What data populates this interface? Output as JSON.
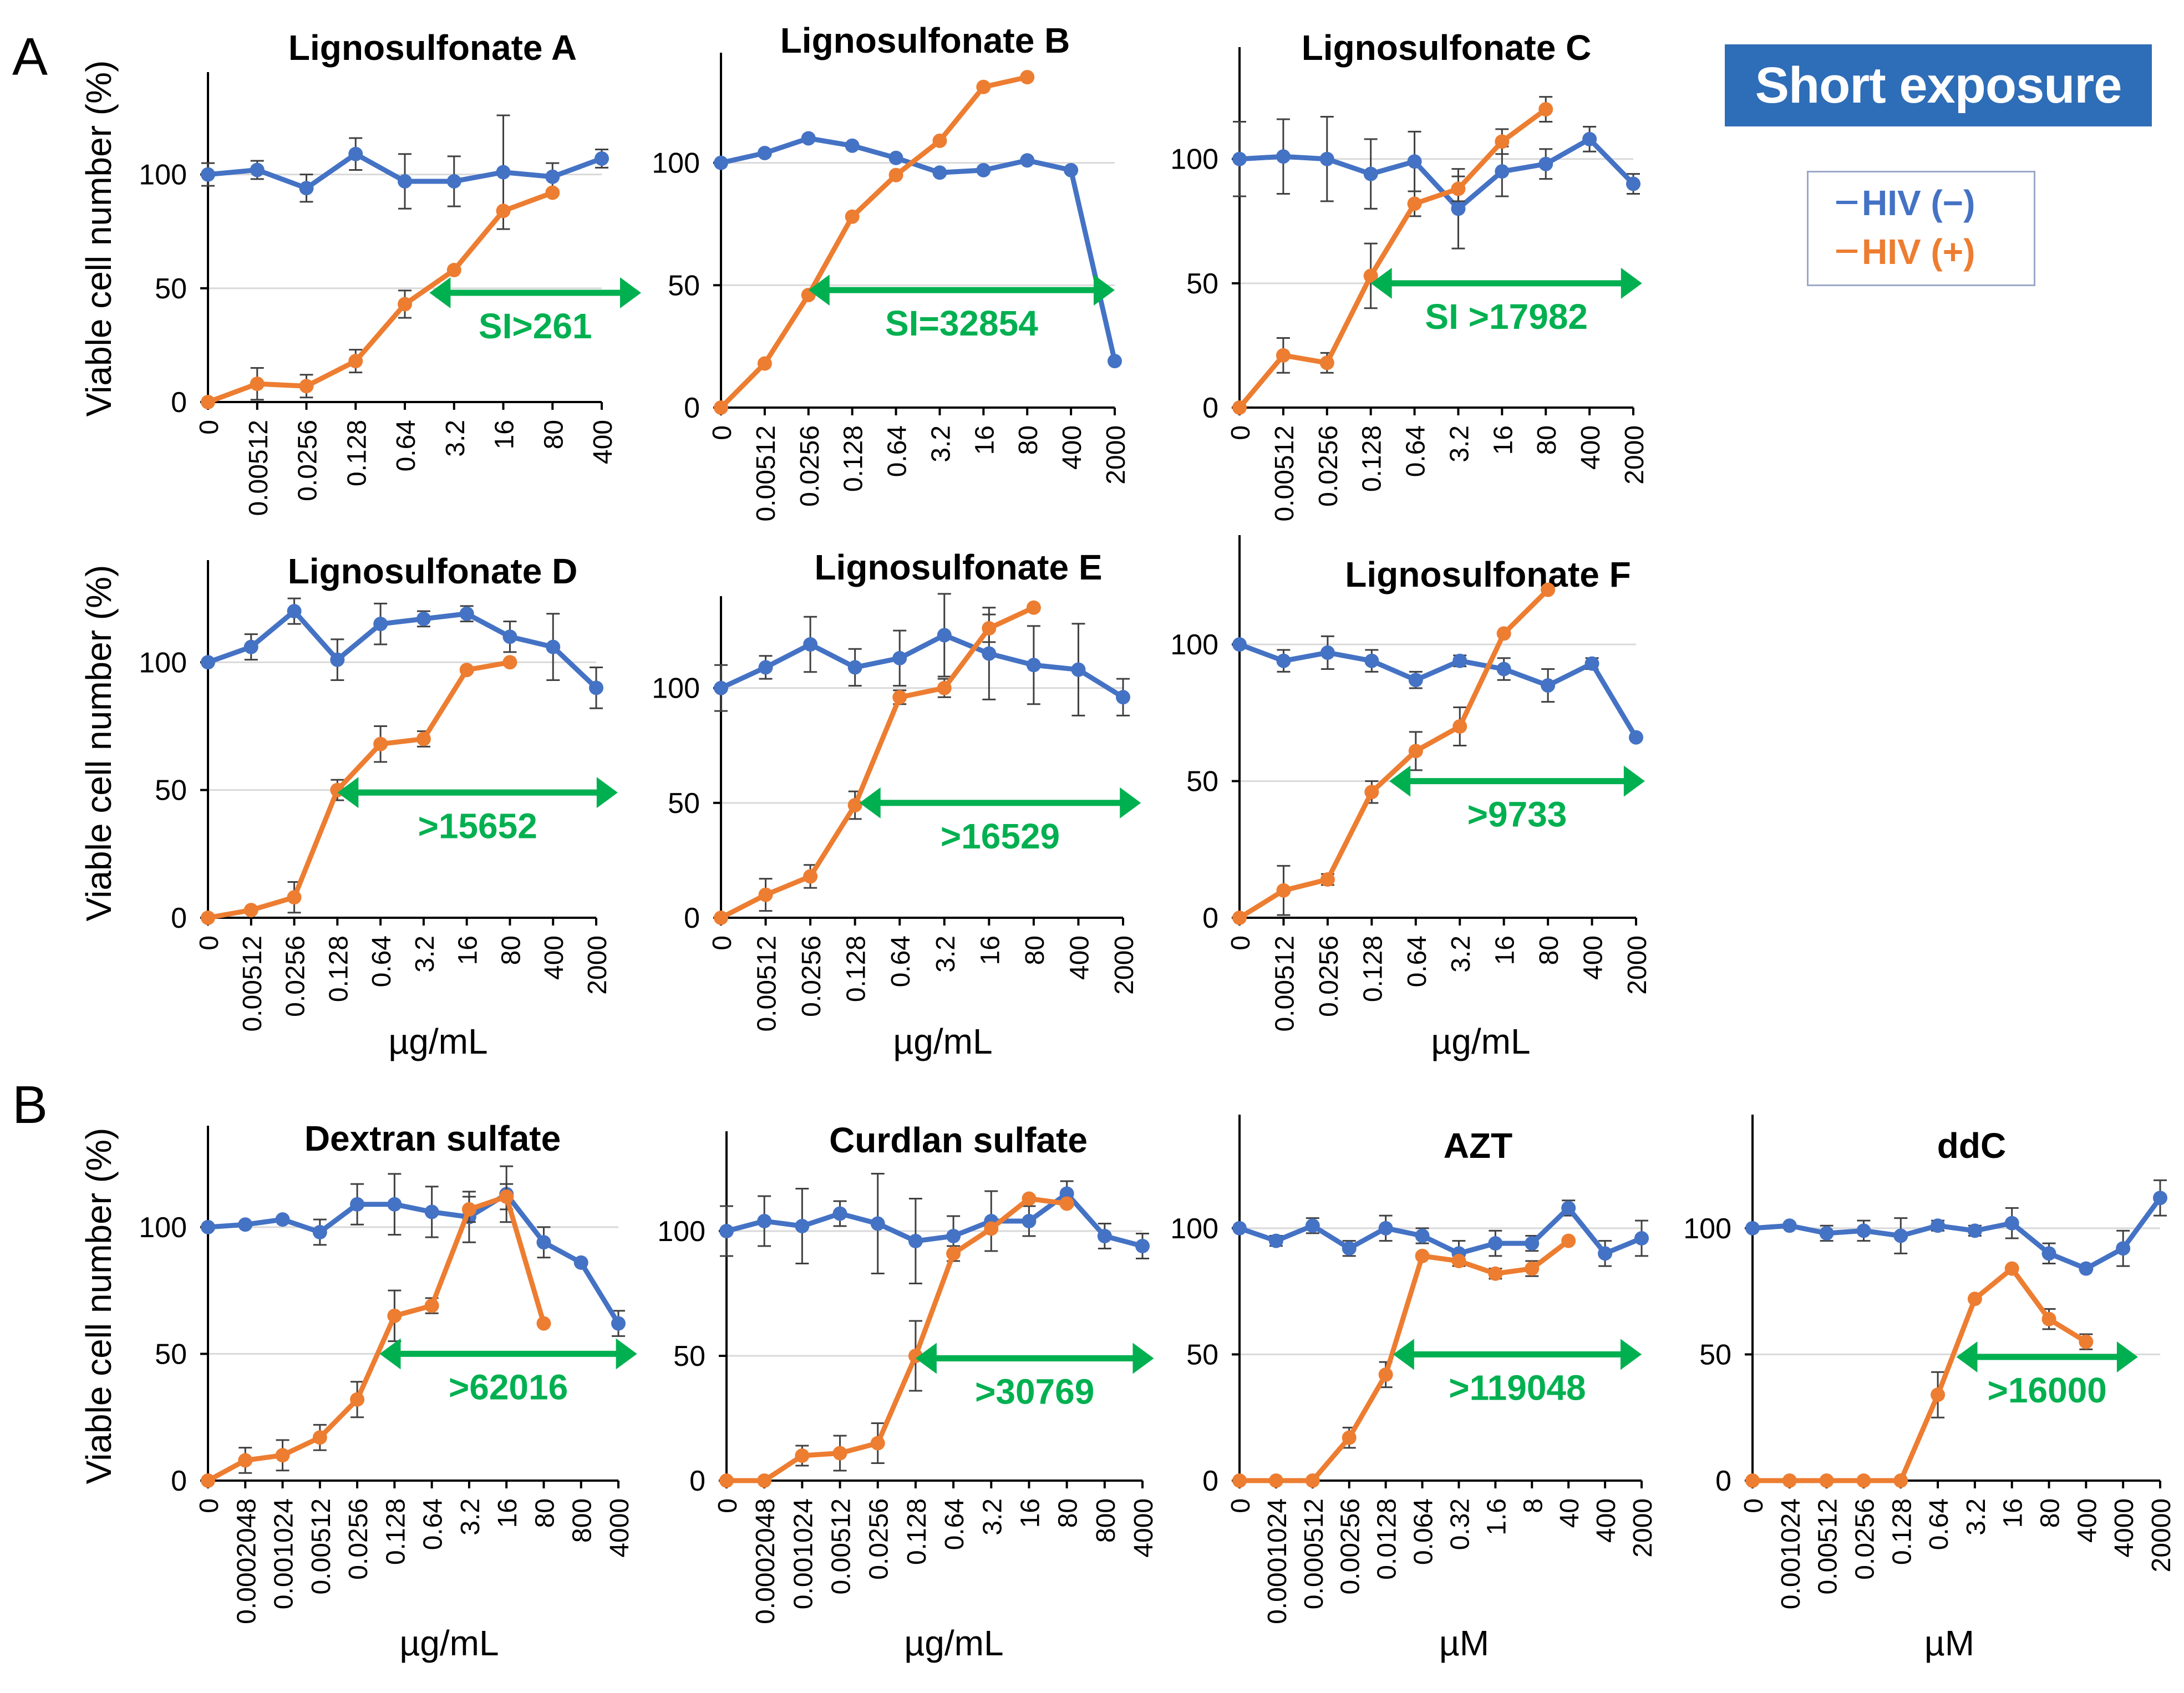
{
  "panel_letters": [
    "A",
    "B"
  ],
  "badge": "Short exposure",
  "legend": [
    {
      "label": "HIV (−)",
      "color": "#4472c4"
    },
    {
      "label": "HIV (+)",
      "color": "#ed7d31"
    }
  ],
  "colors": {
    "hiv_neg": "#4472c4",
    "hiv_pos": "#ed7d31",
    "si_arrow": "#00b050"
  },
  "chart_data": [
    {
      "type": "line",
      "title": "Lignosulfonate A",
      "ylabel": "Viable cell number (%)",
      "xlabel": "",
      "categories": [
        "0",
        "0.00512",
        "0.0256",
        "0.128",
        "0.64",
        "3.2",
        "16",
        "80",
        "400"
      ],
      "ylim": [
        0,
        145
      ],
      "yticks": [
        0,
        50,
        100
      ],
      "series": [
        {
          "name": "HIV (−)",
          "values": [
            100,
            102,
            94,
            109,
            97,
            97,
            101,
            99,
            107
          ],
          "errors": [
            5,
            4,
            6,
            7,
            12,
            11,
            25,
            6,
            4
          ]
        },
        {
          "name": "HIV (+)",
          "values": [
            0,
            8,
            7,
            18,
            43,
            58,
            84,
            92,
            null
          ],
          "errors": [
            0,
            7,
            5,
            5,
            6,
            0,
            0,
            0,
            0
          ]
        }
      ],
      "si_label": "SI>261",
      "si_arrow": {
        "from": 4.5,
        "to": 8.8,
        "y": 48
      }
    },
    {
      "type": "line",
      "title": "Lignosulfonate B",
      "ylabel": "",
      "xlabel": "",
      "categories": [
        "0",
        "0.00512",
        "0.0256",
        "0.128",
        "0.64",
        "3.2",
        "16",
        "80",
        "400",
        "2000"
      ],
      "ylim": [
        0,
        145
      ],
      "yticks": [
        0,
        50,
        100
      ],
      "series": [
        {
          "name": "HIV (−)",
          "values": [
            100,
            104,
            110,
            107,
            102,
            96,
            97,
            101,
            97,
            19
          ],
          "errors": [
            0,
            0,
            0,
            0,
            0,
            0,
            0,
            0,
            0,
            0
          ]
        },
        {
          "name": "HIV (+)",
          "values": [
            0,
            18,
            46,
            78,
            95,
            109,
            131,
            135,
            null,
            null
          ],
          "errors": [
            0,
            0,
            0,
            0,
            0,
            0,
            0,
            0,
            0,
            0
          ]
        }
      ],
      "si_label": "SI=32854",
      "si_arrow": {
        "from": 2.0,
        "to": 9.0,
        "y": 48
      }
    },
    {
      "type": "line",
      "title": "Lignosulfonate C",
      "ylabel": "",
      "xlabel": "",
      "categories": [
        "0",
        "0.00512",
        "0.0256",
        "0.128",
        "0.64",
        "3.2",
        "16",
        "80",
        "400",
        "2000"
      ],
      "ylim": [
        0,
        145
      ],
      "yticks": [
        0,
        50,
        100
      ],
      "series": [
        {
          "name": "HIV (−)",
          "values": [
            100,
            101,
            100,
            94,
            99,
            80,
            95,
            98,
            108,
            90
          ],
          "errors": [
            15,
            15,
            17,
            14,
            12,
            16,
            10,
            6,
            5,
            4
          ]
        },
        {
          "name": "HIV (+)",
          "values": [
            0,
            21,
            18,
            53,
            82,
            88,
            107,
            120,
            null,
            null
          ],
          "errors": [
            0,
            7,
            4,
            13,
            5,
            5,
            5,
            5,
            0,
            0
          ]
        }
      ],
      "si_label": "SI >17982",
      "si_arrow": {
        "from": 3.0,
        "to": 9.2,
        "y": 50
      }
    },
    {
      "type": "line",
      "title": "Lignosulfonate D",
      "ylabel": "Viable cell number (%)",
      "xlabel": "µg/mL",
      "categories": [
        "0",
        "0.00512",
        "0.0256",
        "0.128",
        "0.64",
        "3.2",
        "16",
        "80",
        "400",
        "2000"
      ],
      "ylim": [
        0,
        140
      ],
      "yticks": [
        0,
        50,
        100
      ],
      "series": [
        {
          "name": "HIV (−)",
          "values": [
            100,
            106,
            120,
            101,
            115,
            117,
            119,
            110,
            106,
            90
          ],
          "errors": [
            0,
            5,
            5,
            8,
            8,
            3,
            3,
            6,
            13,
            8
          ]
        },
        {
          "name": "HIV (+)",
          "values": [
            0,
            3,
            8,
            50,
            68,
            70,
            97,
            100,
            null,
            null
          ],
          "errors": [
            0,
            0,
            6,
            4,
            7,
            3,
            0,
            0,
            0,
            0
          ]
        }
      ],
      "si_label": ">15652",
      "si_arrow": {
        "from": 3.0,
        "to": 9.5,
        "y": 49
      }
    },
    {
      "type": "line",
      "title": "Lignosulfonate E",
      "ylabel": "",
      "xlabel": "µg/mL",
      "categories": [
        "0",
        "0.00512",
        "0.0256",
        "0.128",
        "0.64",
        "3.2",
        "16",
        "80",
        "400",
        "2000"
      ],
      "ylim": [
        0,
        140
      ],
      "yticks": [
        0,
        50,
        100
      ],
      "series": [
        {
          "name": "HIV (−)",
          "values": [
            100,
            109,
            119,
            109,
            113,
            123,
            115,
            110,
            108,
            96
          ],
          "errors": [
            10,
            5,
            12,
            8,
            12,
            18,
            20,
            17,
            20,
            8
          ]
        },
        {
          "name": "HIV (+)",
          "values": [
            0,
            10,
            18,
            49,
            96,
            100,
            126,
            135,
            null,
            null
          ],
          "errors": [
            0,
            7,
            5,
            6,
            3,
            4,
            6,
            0,
            0,
            0
          ]
        }
      ],
      "si_label": ">16529",
      "si_arrow": {
        "from": 3.1,
        "to": 9.4,
        "y": 50
      }
    },
    {
      "type": "line",
      "title": "Lignosulfonate F",
      "ylabel": "",
      "xlabel": "µg/mL",
      "categories": [
        "0",
        "0.00512",
        "0.0256",
        "0.128",
        "0.64",
        "3.2",
        "16",
        "80",
        "400",
        "2000"
      ],
      "ylim": [
        0,
        140
      ],
      "yticks": [
        0,
        50,
        100
      ],
      "series": [
        {
          "name": "HIV (−)",
          "values": [
            100,
            94,
            97,
            94,
            87,
            94,
            91,
            85,
            93,
            66
          ],
          "errors": [
            0,
            4,
            6,
            4,
            3,
            2,
            4,
            6,
            2,
            0
          ]
        },
        {
          "name": "HIV (+)",
          "values": [
            0,
            10,
            14,
            46,
            61,
            70,
            104,
            120,
            null,
            null
          ],
          "errors": [
            0,
            9,
            2,
            4,
            7,
            7,
            0,
            0,
            0,
            0
          ]
        }
      ],
      "si_label": ">9733",
      "si_arrow": {
        "from": 3.4,
        "to": 9.2,
        "y": 50
      }
    },
    {
      "type": "line",
      "title": "Dextran sulfate",
      "ylabel": "Viable cell number (%)",
      "xlabel": "µg/mL",
      "categories": [
        "0",
        "0.0002048",
        "0.001024",
        "0.00512",
        "0.0256",
        "0.128",
        "0.64",
        "3.2",
        "16",
        "80",
        "800",
        "4000"
      ],
      "ylim": [
        0,
        140
      ],
      "yticks": [
        0,
        50,
        100
      ],
      "series": [
        {
          "name": "HIV (−)",
          "values": [
            100,
            101,
            103,
            98,
            109,
            109,
            106,
            104,
            113,
            94,
            86,
            62
          ],
          "errors": [
            0,
            0,
            0,
            5,
            8,
            12,
            10,
            10,
            11,
            6,
            0,
            5
          ]
        },
        {
          "name": "HIV (+)",
          "values": [
            0,
            8,
            10,
            17,
            32,
            65,
            69,
            107,
            112,
            62,
            null,
            null
          ],
          "errors": [
            0,
            5,
            6,
            5,
            7,
            10,
            3,
            5,
            5,
            0,
            0,
            0
          ]
        }
      ],
      "si_label": ">62016",
      "si_arrow": {
        "from": 4.6,
        "to": 11.5,
        "y": 50
      }
    },
    {
      "type": "line",
      "title": "Curdlan sulfate",
      "ylabel": "",
      "xlabel": "µg/mL",
      "categories": [
        "0",
        "0.0002048",
        "0.001024",
        "0.00512",
        "0.0256",
        "0.128",
        "0.64",
        "3.2",
        "16",
        "80",
        "800",
        "4000"
      ],
      "ylim": [
        0,
        140
      ],
      "yticks": [
        0,
        50,
        100
      ],
      "series": [
        {
          "name": "HIV (−)",
          "values": [
            100,
            104,
            102,
            107,
            103,
            96,
            98,
            104,
            104,
            115,
            98,
            94
          ],
          "errors": [
            10,
            10,
            15,
            5,
            20,
            17,
            8,
            12,
            6,
            5,
            5,
            5
          ]
        },
        {
          "name": "HIV (+)",
          "values": [
            0,
            0,
            10,
            11,
            15,
            50,
            91,
            101,
            113,
            111,
            null,
            null
          ],
          "errors": [
            0,
            0,
            4,
            7,
            8,
            14,
            3,
            0,
            0,
            0,
            0,
            0
          ]
        }
      ],
      "si_label": ">30769",
      "si_arrow": {
        "from": 5.0,
        "to": 11.3,
        "y": 49
      }
    },
    {
      "type": "line",
      "title": "AZT",
      "ylabel": "",
      "xlabel": "µM",
      "categories": [
        "0",
        "0.0001024",
        "0.000512",
        "0.00256",
        "0.0128",
        "0.064",
        "0.32",
        "1.6",
        "8",
        "40",
        "400",
        "2000"
      ],
      "ylim": [
        0,
        145
      ],
      "yticks": [
        0,
        50,
        100
      ],
      "series": [
        {
          "name": "HIV (−)",
          "values": [
            100,
            95,
            101,
            92,
            100,
            97,
            90,
            94,
            94,
            108,
            90,
            96
          ],
          "errors": [
            0,
            2,
            3,
            3,
            5,
            3,
            5,
            5,
            3,
            3,
            5,
            7
          ]
        },
        {
          "name": "HIV (+)",
          "values": [
            0,
            0,
            0,
            17,
            42,
            89,
            87,
            82,
            84,
            95,
            null,
            null
          ],
          "errors": [
            0,
            0,
            0,
            4,
            5,
            0,
            0,
            2,
            3,
            0,
            0,
            0
          ]
        }
      ],
      "si_label": ">119048",
      "si_arrow": {
        "from": 4.2,
        "to": 11.0,
        "y": 50
      }
    },
    {
      "type": "line",
      "title": "ddC",
      "ylabel": "",
      "xlabel": "µM",
      "categories": [
        "0",
        "0.001024",
        "0.00512",
        "0.0256",
        "0.128",
        "0.64",
        "3.2",
        "16",
        "80",
        "400",
        "4000",
        "20000"
      ],
      "ylim": [
        0,
        145
      ],
      "yticks": [
        0,
        50,
        100
      ],
      "series": [
        {
          "name": "HIV (−)",
          "values": [
            100,
            101,
            98,
            99,
            97,
            101,
            99,
            102,
            90,
            84,
            92,
            112
          ],
          "errors": [
            0,
            0,
            3,
            4,
            7,
            2,
            2,
            6,
            4,
            0,
            7,
            7
          ]
        },
        {
          "name": "HIV (+)",
          "values": [
            0,
            0,
            0,
            0,
            0,
            34,
            72,
            84,
            64,
            55,
            null,
            null
          ],
          "errors": [
            0,
            0,
            0,
            0,
            0,
            9,
            0,
            0,
            4,
            3,
            0,
            0
          ]
        }
      ],
      "si_label": ">16000",
      "si_arrow": {
        "from": 5.5,
        "to": 10.4,
        "y": 49
      }
    }
  ]
}
